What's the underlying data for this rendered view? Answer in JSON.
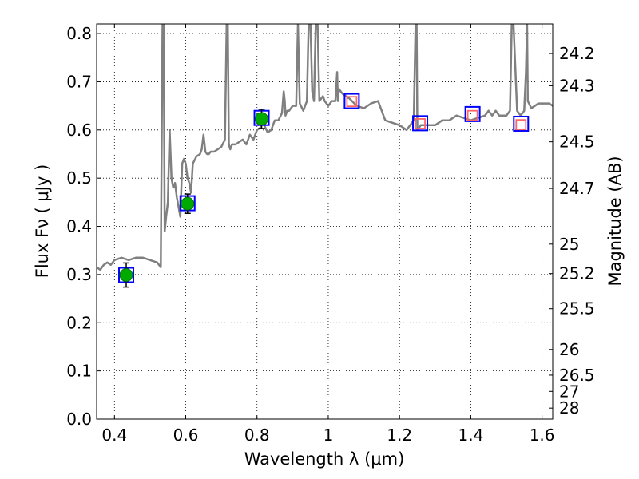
{
  "chart_data": {
    "type": "line",
    "xlabel": "Wavelength  λ (μm)",
    "ylabel": "Flux  Fν  ( μJy )",
    "y2label": "Magnitude (AB)",
    "xlim": [
      0.35,
      1.63
    ],
    "ylim": [
      0.0,
      0.82
    ],
    "grid": true,
    "x_ticks": [
      0.4,
      0.6,
      0.8,
      1.0,
      1.2,
      1.4,
      1.6
    ],
    "x_tick_labels": [
      "0.4",
      "0.6",
      "0.8",
      "1",
      "1.2",
      "1.4",
      "1.6"
    ],
    "y_ticks": [
      0.0,
      0.1,
      0.2,
      0.3,
      0.4,
      0.5,
      0.6,
      0.7,
      0.8
    ],
    "y_tick_labels": [
      "0.0",
      "0.1",
      "0.2",
      "0.3",
      "0.4",
      "0.5",
      "0.6",
      "0.7",
      "0.8"
    ],
    "y2_ticks": [
      {
        "label": "24.2",
        "flux": 0.7586
      },
      {
        "label": "24.3",
        "flux": 0.6918
      },
      {
        "label": "24.5",
        "flux": 0.5754
      },
      {
        "label": "24.7",
        "flux": 0.4786
      },
      {
        "label": "25",
        "flux": 0.3631
      },
      {
        "label": "25.2",
        "flux": 0.302
      },
      {
        "label": "25.5",
        "flux": 0.2291
      },
      {
        "label": "26",
        "flux": 0.1445
      },
      {
        "label": "26.5",
        "flux": 0.0912
      },
      {
        "label": "27",
        "flux": 0.0575
      },
      {
        "label": "28",
        "flux": 0.0229
      }
    ],
    "model_spectrum": {
      "color": "#808080",
      "x": [
        0.35,
        0.36,
        0.37,
        0.38,
        0.39,
        0.4,
        0.42,
        0.44,
        0.46,
        0.48,
        0.5,
        0.52,
        0.53,
        0.535,
        0.538,
        0.541,
        0.545,
        0.55,
        0.555,
        0.56,
        0.565,
        0.57,
        0.575,
        0.58,
        0.585,
        0.59,
        0.595,
        0.6,
        0.605,
        0.61,
        0.615,
        0.62,
        0.63,
        0.64,
        0.645,
        0.65,
        0.655,
        0.66,
        0.665,
        0.67,
        0.68,
        0.69,
        0.7,
        0.71,
        0.715,
        0.718,
        0.721,
        0.725,
        0.73,
        0.74,
        0.75,
        0.76,
        0.77,
        0.78,
        0.79,
        0.8,
        0.81,
        0.815,
        0.82,
        0.83,
        0.84,
        0.85,
        0.86,
        0.87,
        0.875,
        0.878,
        0.88,
        0.885,
        0.89,
        0.9,
        0.91,
        0.915,
        0.92,
        0.93,
        0.94,
        0.945,
        0.95,
        0.955,
        0.96,
        0.965,
        0.97,
        0.975,
        0.98,
        0.985,
        0.99,
        1.0,
        1.01,
        1.02,
        1.025,
        1.027,
        1.03,
        1.035,
        1.04,
        1.05,
        1.06,
        1.08,
        1.1,
        1.12,
        1.14,
        1.16,
        1.18,
        1.2,
        1.22,
        1.24,
        1.245,
        1.248,
        1.25,
        1.26,
        1.28,
        1.3,
        1.32,
        1.34,
        1.36,
        1.38,
        1.4,
        1.42,
        1.44,
        1.45,
        1.46,
        1.47,
        1.48,
        1.5,
        1.51,
        1.515,
        1.52,
        1.53,
        1.54,
        1.55,
        1.555,
        1.558,
        1.56,
        1.57,
        1.58,
        1.59,
        1.6,
        1.62,
        1.63
      ],
      "y": [
        0.315,
        0.31,
        0.32,
        0.325,
        0.32,
        0.33,
        0.335,
        0.33,
        0.335,
        0.335,
        0.33,
        0.325,
        0.315,
        0.82,
        0.82,
        0.39,
        0.42,
        0.45,
        0.6,
        0.5,
        0.48,
        0.49,
        0.46,
        0.44,
        0.42,
        0.53,
        0.54,
        0.53,
        0.5,
        0.49,
        0.47,
        0.53,
        0.545,
        0.55,
        0.56,
        0.59,
        0.555,
        0.55,
        0.55,
        0.555,
        0.555,
        0.56,
        0.565,
        0.58,
        0.82,
        0.82,
        0.57,
        0.56,
        0.57,
        0.57,
        0.575,
        0.58,
        0.57,
        0.59,
        0.58,
        0.6,
        0.605,
        0.62,
        0.61,
        0.595,
        0.6,
        0.62,
        0.62,
        0.635,
        0.68,
        0.66,
        0.63,
        0.64,
        0.64,
        0.65,
        0.65,
        0.82,
        0.655,
        0.64,
        0.66,
        0.82,
        0.82,
        0.68,
        0.66,
        0.82,
        0.82,
        0.66,
        0.665,
        0.67,
        0.66,
        0.65,
        0.66,
        0.66,
        0.72,
        0.66,
        0.685,
        0.68,
        0.675,
        0.67,
        0.665,
        0.65,
        0.645,
        0.655,
        0.66,
        0.62,
        0.615,
        0.61,
        0.6,
        0.62,
        0.82,
        0.82,
        0.6,
        0.61,
        0.61,
        0.61,
        0.62,
        0.62,
        0.63,
        0.625,
        0.62,
        0.625,
        0.63,
        0.64,
        0.63,
        0.64,
        0.63,
        0.63,
        0.64,
        0.82,
        0.82,
        0.64,
        0.63,
        0.64,
        0.72,
        0.82,
        0.66,
        0.645,
        0.65,
        0.655,
        0.655,
        0.655,
        0.65
      ],
      "peak_clip": 0.82
    },
    "observed_photometry": {
      "marker": "circle",
      "color": "#00aa00",
      "x": [
        0.433,
        0.605,
        0.813
      ],
      "y": [
        0.299,
        0.447,
        0.623
      ],
      "yerr": [
        0.025,
        0.02,
        0.02
      ]
    },
    "upper_limit_photometry": {
      "marker": "open-square",
      "color": "#ff6666",
      "x": [
        1.066,
        1.258,
        1.405,
        1.541
      ],
      "y": [
        0.659,
        0.613,
        0.63,
        0.611
      ]
    },
    "model_bandpass_flux": {
      "marker": "open-square",
      "color": "#0000ff",
      "x": [
        0.433,
        0.605,
        0.813,
        1.066,
        1.258,
        1.405,
        1.541
      ],
      "y": [
        0.299,
        0.448,
        0.625,
        0.66,
        0.614,
        0.633,
        0.613
      ]
    }
  }
}
